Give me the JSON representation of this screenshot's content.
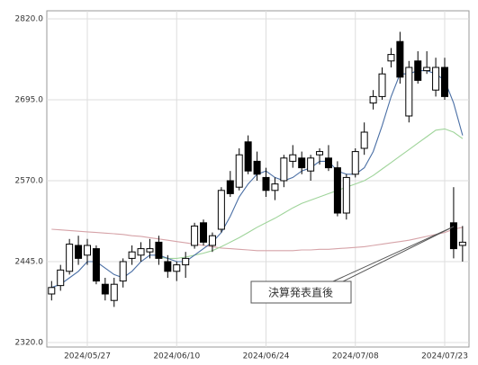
{
  "chart_data": {
    "type": "candlestick",
    "categories": [
      null,
      null,
      null,
      null,
      "2024/05/27",
      null,
      null,
      null,
      null,
      null,
      null,
      null,
      null,
      null,
      "2024/06/10",
      null,
      null,
      null,
      null,
      null,
      null,
      null,
      null,
      null,
      "2024/06/24",
      null,
      null,
      null,
      null,
      null,
      null,
      null,
      null,
      null,
      "2024/07/08",
      null,
      null,
      null,
      null,
      null,
      null,
      null,
      null,
      null,
      "2024/07/23",
      null,
      null
    ],
    "open": [
      2395,
      2408,
      2430,
      2470,
      2455,
      2465,
      2410,
      2385,
      2415,
      2450,
      2455,
      2460,
      2475,
      2445,
      2430,
      2440,
      2470,
      2505,
      2470,
      2495,
      2570,
      2560,
      2630,
      2600,
      2575,
      2555,
      2570,
      2600,
      2605,
      2585,
      2610,
      2605,
      2590,
      2520,
      2580,
      2620,
      2690,
      2700,
      2755,
      2785,
      2670,
      2755,
      2740,
      2710,
      2745,
      2505,
      2470
    ],
    "high": [
      2415,
      2440,
      2480,
      2485,
      2480,
      2470,
      2420,
      2420,
      2450,
      2470,
      2475,
      2480,
      2485,
      2455,
      2445,
      2460,
      2505,
      2510,
      2490,
      2560,
      2585,
      2620,
      2640,
      2615,
      2590,
      2575,
      2610,
      2625,
      2615,
      2610,
      2620,
      2625,
      2600,
      2580,
      2620,
      2660,
      2710,
      2745,
      2775,
      2800,
      2755,
      2770,
      2770,
      2760,
      2760,
      2560,
      2500
    ],
    "low": [
      2385,
      2400,
      2425,
      2440,
      2440,
      2410,
      2385,
      2375,
      2405,
      2440,
      2445,
      2450,
      2440,
      2420,
      2415,
      2420,
      2465,
      2470,
      2460,
      2490,
      2545,
      2555,
      2580,
      2570,
      2545,
      2540,
      2560,
      2590,
      2580,
      2570,
      2595,
      2585,
      2515,
      2510,
      2575,
      2610,
      2680,
      2695,
      2745,
      2720,
      2660,
      2720,
      2735,
      2700,
      2695,
      2450,
      2445
    ],
    "close": [
      2405,
      2432,
      2472,
      2450,
      2470,
      2415,
      2395,
      2410,
      2445,
      2460,
      2465,
      2465,
      2450,
      2430,
      2440,
      2450,
      2500,
      2475,
      2485,
      2555,
      2550,
      2610,
      2585,
      2580,
      2555,
      2565,
      2605,
      2610,
      2590,
      2605,
      2615,
      2590,
      2520,
      2575,
      2615,
      2645,
      2700,
      2735,
      2765,
      2730,
      2745,
      2725,
      2745,
      2745,
      2700,
      2465,
      2475
    ],
    "up_color": "#ffffff",
    "down_color": "#000000",
    "series": [
      {
        "color": "#4a6fa5",
        "values": [
          2405,
          2410,
          2420,
          2430,
          2445,
          2445,
          2435,
          2425,
          2420,
          2430,
          2445,
          2455,
          2455,
          2450,
          2445,
          2445,
          2455,
          2465,
          2475,
          2490,
          2515,
          2545,
          2565,
          2580,
          2585,
          2575,
          2570,
          2575,
          2585,
          2590,
          2600,
          2600,
          2585,
          2580,
          2580,
          2590,
          2615,
          2655,
          2700,
          2735,
          2735,
          2740,
          2740,
          2735,
          2725,
          2690,
          2640
        ]
      },
      {
        "color": "#9fd49a",
        "values": [
          null,
          null,
          null,
          null,
          null,
          null,
          null,
          null,
          null,
          null,
          null,
          null,
          2452,
          2450,
          2450,
          2452,
          2455,
          2458,
          2462,
          2468,
          2475,
          2482,
          2490,
          2498,
          2505,
          2512,
          2520,
          2528,
          2535,
          2540,
          2545,
          2550,
          2555,
          2560,
          2565,
          2570,
          2578,
          2588,
          2598,
          2608,
          2618,
          2628,
          2638,
          2648,
          2650,
          2645,
          2635
        ]
      },
      {
        "color": "#d6a3a8",
        "values": [
          2495,
          2494,
          2493,
          2492,
          2491,
          2490,
          2489,
          2488,
          2487,
          2485,
          2484,
          2482,
          2480,
          2478,
          2476,
          2474,
          2472,
          2470,
          2468,
          2466,
          2465,
          2464,
          2463,
          2462,
          2462,
          2462,
          2462,
          2462,
          2463,
          2463,
          2464,
          2464,
          2465,
          2466,
          2467,
          2468,
          2470,
          2472,
          2474,
          2476,
          2478,
          2481,
          2484,
          2487,
          2490,
          2495,
          2498
        ]
      }
    ],
    "ylim": [
      2320,
      2820
    ],
    "yticks": [
      {
        "value": 2320,
        "label": "2320.0"
      },
      {
        "value": 2445,
        "label": "2445.0"
      },
      {
        "value": 2570,
        "label": "2570.0"
      },
      {
        "value": 2695,
        "label": "2695.0"
      },
      {
        "value": 2820,
        "label": "2820.0"
      }
    ],
    "grid": true,
    "annotation": "決算発表直後"
  }
}
